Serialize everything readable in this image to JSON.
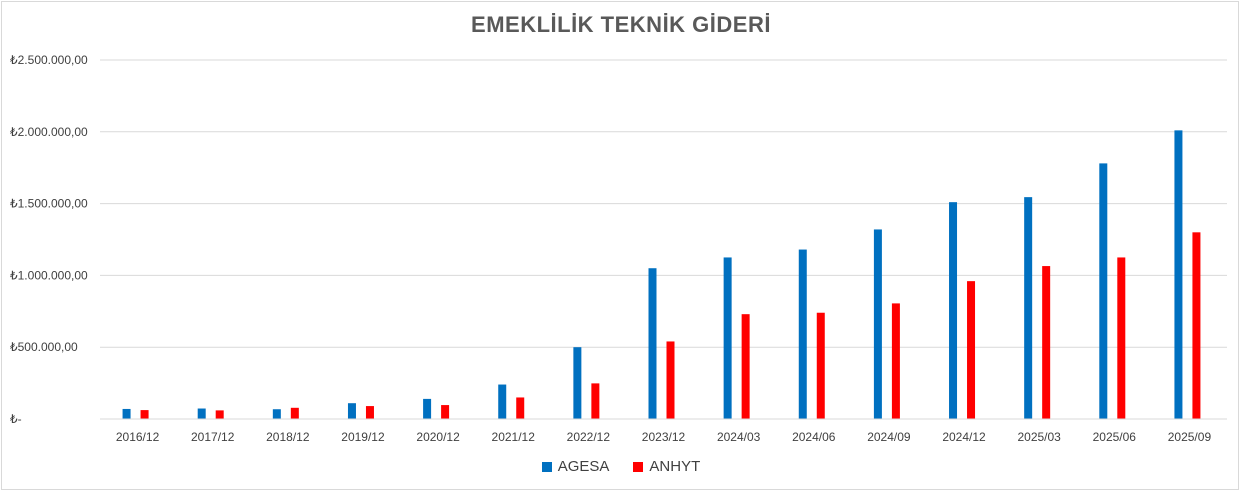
{
  "chart_data": {
    "type": "bar",
    "title": "EMEKLİLİK TEKNİK GİDERİ",
    "xlabel": "",
    "ylabel": "",
    "ylim": [
      0,
      2500000
    ],
    "y_ticks": [
      0,
      500000,
      1000000,
      1500000,
      2000000,
      2500000
    ],
    "y_tick_labels": [
      "₺-",
      "₺500.000,00",
      "₺1.000.000,00",
      "₺1.500.000,00",
      "₺2.000.000,00",
      "₺2.500.000,00"
    ],
    "grid": true,
    "legend_position": "bottom",
    "categories": [
      "2016/12",
      "2017/12",
      "2018/12",
      "2019/12",
      "2020/12",
      "2021/12",
      "2022/12",
      "2023/12",
      "2024/03",
      "2024/06",
      "2024/09",
      "2024/12",
      "2025/03",
      "2025/06",
      "2025/09"
    ],
    "series": [
      {
        "name": "AGESA",
        "color": "#0070c0",
        "values": [
          70000,
          73000,
          68000,
          110000,
          140000,
          240000,
          500000,
          1050000,
          1125000,
          1180000,
          1320000,
          1510000,
          1545000,
          1780000,
          2010000
        ]
      },
      {
        "name": "ANHYT",
        "color": "#ff0000",
        "values": [
          62000,
          60000,
          78000,
          90000,
          97000,
          150000,
          248000,
          540000,
          730000,
          740000,
          805000,
          960000,
          1065000,
          1125000,
          1300000
        ]
      }
    ]
  }
}
